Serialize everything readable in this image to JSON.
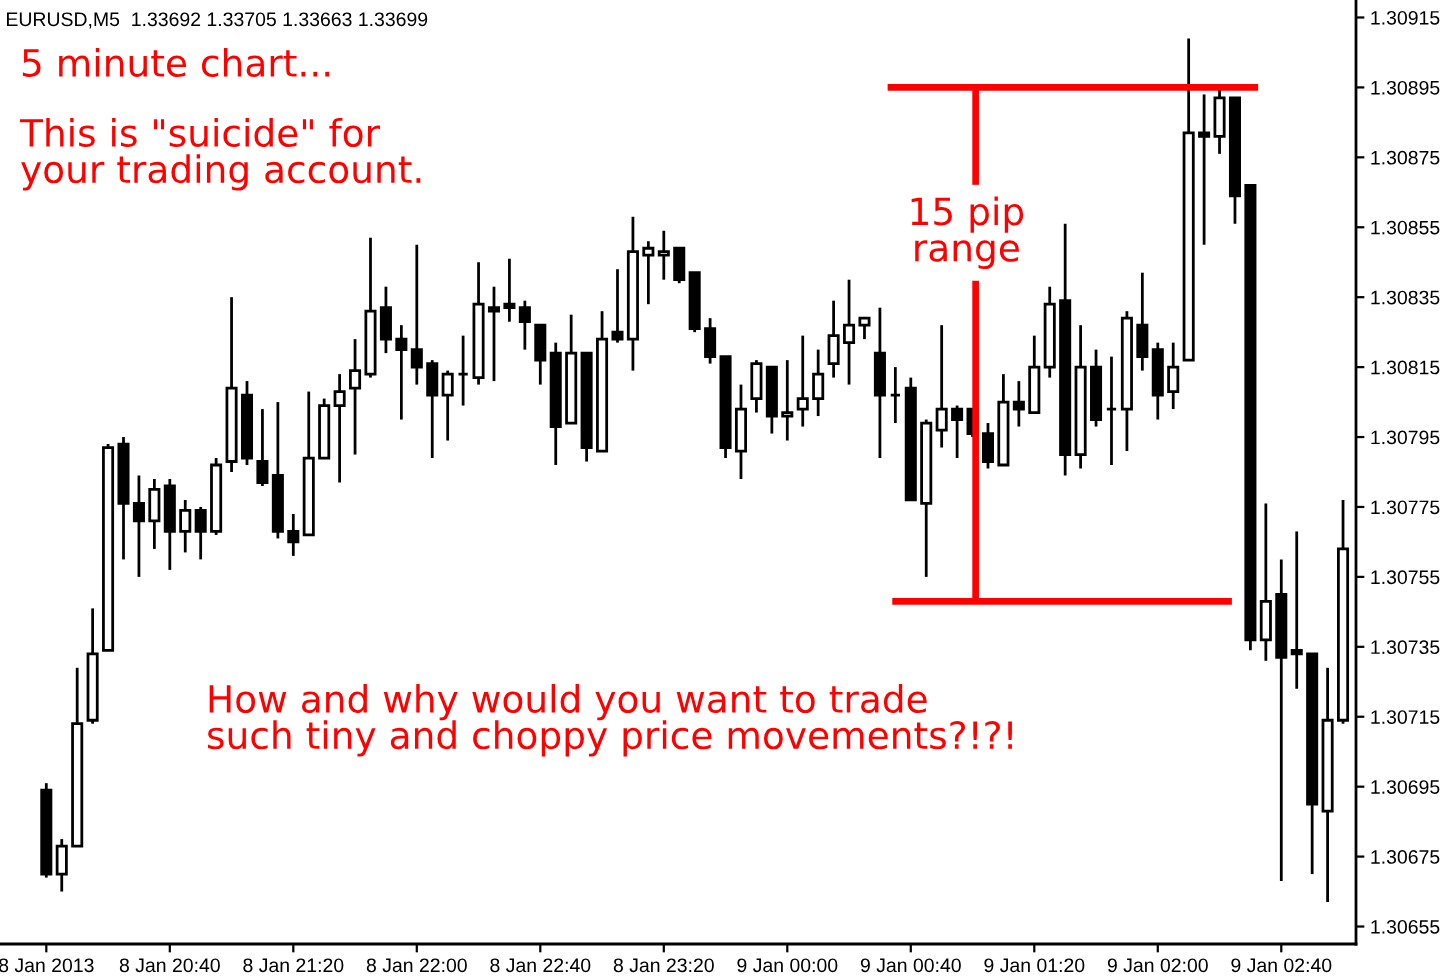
{
  "chart_data": {
    "type": "candlestick",
    "title": "EURUSD,M5  1.33692 1.33705 1.33663 1.33699",
    "categories": [
      "8 Jan 2013",
      null,
      null,
      null,
      null,
      null,
      null,
      null,
      "8 Jan 20:40",
      null,
      null,
      null,
      null,
      null,
      null,
      null,
      "8 Jan 21:20",
      null,
      null,
      null,
      null,
      null,
      null,
      null,
      "8 Jan 22:00",
      null,
      null,
      null,
      null,
      null,
      null,
      null,
      "8 Jan 22:40",
      null,
      null,
      null,
      null,
      null,
      null,
      null,
      "8 Jan 23:20",
      null,
      null,
      null,
      null,
      null,
      null,
      null,
      "9 Jan 00:00",
      null,
      null,
      null,
      null,
      null,
      null,
      null,
      "9 Jan 00:40",
      null,
      null,
      null,
      null,
      null,
      null,
      null,
      "9 Jan 01:20",
      null,
      null,
      null,
      null,
      null,
      null,
      null,
      "9 Jan 02:00",
      null,
      null,
      null,
      null,
      null,
      null,
      null,
      "9 Jan 02:40",
      null,
      null,
      null,
      null
    ],
    "ohlc": [
      [
        1.30694,
        1.30696,
        1.30669,
        1.3067
      ],
      [
        1.3067,
        1.3068,
        1.30665,
        1.30678
      ],
      [
        1.30678,
        1.30729,
        1.30678,
        1.30713
      ],
      [
        1.30714,
        1.30746,
        1.30713,
        1.30733
      ],
      [
        1.30734,
        1.30793,
        1.30734,
        1.30792
      ],
      [
        1.30793,
        1.30795,
        1.3076,
        1.30776
      ],
      [
        1.30776,
        1.30784,
        1.30755,
        1.30771
      ],
      [
        1.30771,
        1.30783,
        1.30763,
        1.3078
      ],
      [
        1.30781,
        1.30783,
        1.30757,
        1.30768
      ],
      [
        1.30768,
        1.30777,
        1.30762,
        1.30774
      ],
      [
        1.30774,
        1.30775,
        1.3076,
        1.30768
      ],
      [
        1.30768,
        1.30789,
        1.30767,
        1.30787
      ],
      [
        1.30788,
        1.30835,
        1.30785,
        1.30809
      ],
      [
        1.30807,
        1.30811,
        1.30787,
        1.30789
      ],
      [
        1.30788,
        1.30803,
        1.30781,
        1.30782
      ],
      [
        1.30784,
        1.30805,
        1.30766,
        1.30768
      ],
      [
        1.30768,
        1.30773,
        1.30761,
        1.30765
      ],
      [
        1.30767,
        1.30808,
        1.30767,
        1.30789
      ],
      [
        1.30789,
        1.30806,
        1.30789,
        1.30804
      ],
      [
        1.30804,
        1.30813,
        1.30782,
        1.30808
      ],
      [
        1.30809,
        1.30823,
        1.3079,
        1.30814
      ],
      [
        1.30813,
        1.30852,
        1.30812,
        1.30831
      ],
      [
        1.30832,
        1.30838,
        1.30819,
        1.30823
      ],
      [
        1.30823,
        1.30827,
        1.308,
        1.3082
      ],
      [
        1.3082,
        1.3085,
        1.3081,
        1.30815
      ],
      [
        1.30816,
        1.30817,
        1.30789,
        1.30807
      ],
      [
        1.30807,
        1.30814,
        1.30794,
        1.30813
      ],
      [
        1.30813,
        1.30824,
        1.30804,
        1.30813
      ],
      [
        1.30812,
        1.30845,
        1.3081,
        1.30833
      ],
      [
        1.30832,
        1.30838,
        1.30811,
        1.30831
      ],
      [
        1.30833,
        1.30846,
        1.30828,
        1.30832
      ],
      [
        1.30832,
        1.30834,
        1.3082,
        1.30828
      ],
      [
        1.30827,
        1.30827,
        1.3081,
        1.30817
      ],
      [
        1.30819,
        1.30822,
        1.30787,
        1.30798
      ],
      [
        1.30799,
        1.3083,
        1.30799,
        1.30819
      ],
      [
        1.30819,
        1.30819,
        1.30788,
        1.30792
      ],
      [
        1.30791,
        1.30831,
        1.30791,
        1.30823
      ],
      [
        1.30825,
        1.30843,
        1.30822,
        1.30823
      ],
      [
        1.30823,
        1.30858,
        1.30814,
        1.30848
      ],
      [
        1.30847,
        1.30851,
        1.30833,
        1.30849
      ],
      [
        1.30847,
        1.30854,
        1.3084,
        1.30848
      ],
      [
        1.30849,
        1.30849,
        1.30839,
        1.3084
      ],
      [
        1.30842,
        1.30842,
        1.30825,
        1.30826
      ],
      [
        1.30826,
        1.30829,
        1.30816,
        1.30818
      ],
      [
        1.30818,
        1.30818,
        1.30789,
        1.30792
      ],
      [
        1.30791,
        1.3081,
        1.30783,
        1.30803
      ],
      [
        1.30806,
        1.30817,
        1.30802,
        1.30816
      ],
      [
        1.30815,
        1.30815,
        1.30796,
        1.30801
      ],
      [
        1.30801,
        1.30817,
        1.30794,
        1.30802
      ],
      [
        1.30803,
        1.30824,
        1.30798,
        1.30806
      ],
      [
        1.30806,
        1.3082,
        1.30801,
        1.30813
      ],
      [
        1.30816,
        1.30834,
        1.30812,
        1.30824
      ],
      [
        1.30822,
        1.3084,
        1.3081,
        1.30827
      ],
      [
        1.30827,
        1.30829,
        1.30823,
        1.30829
      ],
      [
        1.30819,
        1.30832,
        1.30789,
        1.30807
      ],
      [
        1.30807,
        1.30815,
        1.30799,
        1.30807
      ],
      [
        1.30809,
        1.30812,
        1.30777,
        1.30777
      ],
      [
        1.30776,
        1.308,
        1.30755,
        1.30799
      ],
      [
        1.30797,
        1.30827,
        1.30792,
        1.30803
      ],
      [
        1.30803,
        1.30804,
        1.30789,
        1.308
      ],
      [
        1.30803,
        1.30803,
        1.30795,
        1.30796
      ],
      [
        1.30796,
        1.30799,
        1.30786,
        1.30788
      ],
      [
        1.30787,
        1.30813,
        1.30787,
        1.30805
      ],
      [
        1.30805,
        1.30811,
        1.30798,
        1.30803
      ],
      [
        1.30802,
        1.30824,
        1.30802,
        1.30815
      ],
      [
        1.30815,
        1.30838,
        1.30812,
        1.30833
      ],
      [
        1.30834,
        1.30856,
        1.30784,
        1.3079
      ],
      [
        1.3079,
        1.30827,
        1.30786,
        1.30815
      ],
      [
        1.30815,
        1.3082,
        1.30798,
        1.308
      ],
      [
        1.30803,
        1.30818,
        1.30787,
        1.30803
      ],
      [
        1.30803,
        1.30831,
        1.30791,
        1.30829
      ],
      [
        1.30827,
        1.30842,
        1.30814,
        1.30818
      ],
      [
        1.3082,
        1.30822,
        1.308,
        1.30807
      ],
      [
        1.30808,
        1.30822,
        1.30803,
        1.30815
      ],
      [
        1.30817,
        1.30909,
        1.30817,
        1.30882
      ],
      [
        1.30882,
        1.30893,
        1.3085,
        1.30881
      ],
      [
        1.30881,
        1.30895,
        1.30876,
        1.30892
      ],
      [
        1.30892,
        1.30892,
        1.30856,
        1.30864
      ],
      [
        1.30867,
        1.30867,
        1.30734,
        1.30737
      ],
      [
        1.30737,
        1.30776,
        1.30731,
        1.30748
      ],
      [
        1.3075,
        1.3076,
        1.30668,
        1.30732
      ],
      [
        1.30734,
        1.30768,
        1.30723,
        1.30733
      ],
      [
        1.30733,
        1.30733,
        1.3067,
        1.3069
      ],
      [
        1.30688,
        1.30729,
        1.30662,
        1.30714
      ],
      [
        1.30714,
        1.30777,
        1.30713,
        1.30763
      ]
    ],
    "color": "#000000",
    "ylim": [
      1.3065,
      1.3092
    ],
    "yticks": [
      1.30655,
      1.30675,
      1.30695,
      1.30715,
      1.30735,
      1.30755,
      1.30775,
      1.30795,
      1.30815,
      1.30835,
      1.30855,
      1.30875,
      1.30895,
      1.30915
    ],
    "ref_lines": [
      {
        "axis": "y",
        "value": 1.30895,
        "color": "#ff0000"
      },
      {
        "axis": "y",
        "value": 1.30748,
        "color": "#ff0000"
      }
    ],
    "annotations": [
      "5 minute chart...",
      "This is \"suicide\" for\nyour trading account.",
      "How and why would you want to trade\nsuch tiny and choppy price movements?!?!",
      {
        "text": "15 pip\nrange",
        "y": 1.30895
      }
    ]
  }
}
